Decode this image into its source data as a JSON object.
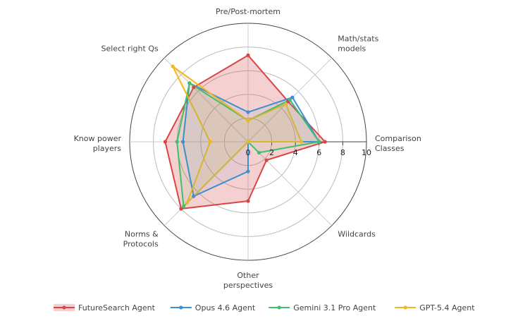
{
  "chart_data": {
    "type": "radar",
    "axes": [
      "Pre/Post-mortem",
      "Math/stats models",
      "Comparison Classes",
      "Wildcards",
      "Other perspectives",
      "Norms & Protocols",
      "Know power players",
      "Select right Qs"
    ],
    "axis_label_lines": [
      [
        "Pre/Post-mortem"
      ],
      [
        "Math/stats",
        "models"
      ],
      [
        "Comparison",
        "Classes"
      ],
      [
        "Wildcards"
      ],
      [
        "Other",
        "perspectives"
      ],
      [
        "Norms &",
        "Protocols"
      ],
      [
        "Know power",
        "players"
      ],
      [
        "Select right Qs"
      ]
    ],
    "rlim": [
      0,
      10
    ],
    "ticks": [
      0,
      2,
      4,
      6,
      8,
      10
    ],
    "grid": true,
    "legend_position": "bottom",
    "series": [
      {
        "name": "FutureSearch Agent",
        "color": "#d94545",
        "fill": true,
        "values": [
          7.3,
          4.8,
          6.5,
          2.2,
          5.0,
          8.0,
          7.0,
          6.5
        ]
      },
      {
        "name": "Opus 4.6 Agent",
        "color": "#3d8fd1",
        "fill": false,
        "values": [
          2.5,
          5.3,
          6.0,
          0.0,
          2.5,
          6.5,
          5.5,
          7.0
        ]
      },
      {
        "name": "Gemini 3.1 Pro Agent",
        "color": "#3ec06c",
        "fill": false,
        "values": [
          1.8,
          5.0,
          6.0,
          1.3,
          0.0,
          7.7,
          6.0,
          7.0
        ]
      },
      {
        "name": "GPT-5.4 Agent",
        "color": "#f0b820",
        "fill": false,
        "values": [
          1.8,
          4.5,
          4.5,
          0.0,
          0.0,
          7.3,
          3.2,
          9.0
        ]
      }
    ]
  }
}
